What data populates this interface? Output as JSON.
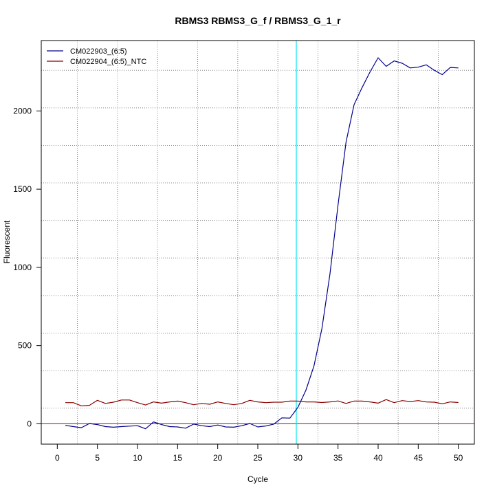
{
  "chart_data": {
    "type": "line",
    "title": "RBMS3  RBMS3_G_f / RBMS3_G_1_r",
    "xlabel": "Cycle",
    "ylabel": "Fluorescent",
    "xlim": [
      -2,
      52
    ],
    "ylim": [
      -130,
      2450
    ],
    "x_ticks": [
      0,
      5,
      10,
      15,
      20,
      25,
      30,
      35,
      40,
      45,
      50
    ],
    "y_ticks": [
      0,
      500,
      1000,
      1500,
      2000
    ],
    "x_grid": [
      2.5,
      7.5,
      12.5,
      17.5,
      22.5,
      27.5,
      32.5,
      37.5,
      42.5,
      47.5
    ],
    "y_grid": [
      100,
      340,
      580,
      820,
      1060,
      1300,
      1540,
      1780,
      2020,
      2260
    ],
    "threshold_x": 29.8,
    "baseline_y": 0,
    "grid": true,
    "legend_position": "top-left",
    "colors": {
      "blue_series": "#00008b",
      "red_series": "#8b0000",
      "threshold": "#00e5ee",
      "baseline": "#b22222",
      "grid": "#888888"
    },
    "x": [
      1,
      2,
      3,
      4,
      5,
      6,
      7,
      8,
      9,
      10,
      11,
      12,
      13,
      14,
      15,
      16,
      17,
      18,
      19,
      20,
      21,
      22,
      23,
      24,
      25,
      26,
      27,
      28,
      29,
      30,
      31,
      32,
      33,
      34,
      35,
      36,
      37,
      38,
      39,
      40,
      41,
      42,
      43,
      44,
      45,
      46,
      47,
      48,
      49,
      50
    ],
    "series": [
      {
        "name": "CM022903_(6:5)",
        "color": "#00008b",
        "values": [
          -10,
          -18,
          -25,
          2,
          -5,
          -18,
          -22,
          -18,
          -15,
          -12,
          -32,
          12,
          -5,
          -18,
          -20,
          -28,
          -2,
          -12,
          -18,
          -8,
          -20,
          -22,
          -12,
          2,
          -20,
          -14,
          -2,
          38,
          36,
          105,
          215,
          370,
          610,
          960,
          1400,
          1800,
          2040,
          2150,
          2250,
          2340,
          2285,
          2320,
          2305,
          2275,
          2280,
          2295,
          2260,
          2232,
          2278,
          2275
        ]
      },
      {
        "name": "CM022904_(6:5)_NTC",
        "color": "#8b0000",
        "values": [
          135,
          135,
          115,
          118,
          150,
          130,
          138,
          152,
          152,
          135,
          120,
          140,
          132,
          140,
          145,
          135,
          122,
          130,
          125,
          140,
          130,
          122,
          130,
          150,
          140,
          135,
          138,
          138,
          145,
          145,
          140,
          140,
          136,
          140,
          146,
          130,
          145,
          145,
          140,
          132,
          155,
          135,
          148,
          142,
          148,
          140,
          138,
          128,
          140,
          136
        ]
      }
    ]
  }
}
